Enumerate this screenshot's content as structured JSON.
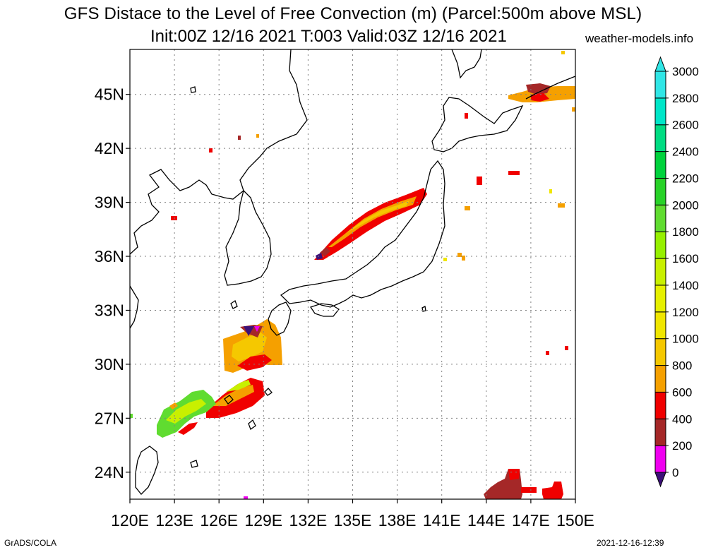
{
  "title": {
    "line1": "GFS Distace to the Level of Free Convection (m) (Parcel:500m above MSL)",
    "line2": "Init:00Z 12/16 2021 T:003 Valid:03Z 12/16 2021",
    "site": "weather-models.info"
  },
  "footer": {
    "left": "GrADS/COLA",
    "right": "2021-12-16-12:39"
  },
  "map": {
    "lon_range": [
      120,
      150
    ],
    "lat_range": [
      22.5,
      47.5
    ],
    "lat_ticks": [
      {
        "value": 24,
        "label": "24N"
      },
      {
        "value": 27,
        "label": "27N"
      },
      {
        "value": 30,
        "label": "30N"
      },
      {
        "value": 33,
        "label": "33N"
      },
      {
        "value": 36,
        "label": "36N"
      },
      {
        "value": 39,
        "label": "39N"
      },
      {
        "value": 42,
        "label": "42N"
      },
      {
        "value": 45,
        "label": "45N"
      }
    ],
    "lon_ticks": [
      {
        "value": 120,
        "label": "120E"
      },
      {
        "value": 123,
        "label": "123E"
      },
      {
        "value": 126,
        "label": "126E"
      },
      {
        "value": 129,
        "label": "129E"
      },
      {
        "value": 132,
        "label": "132E"
      },
      {
        "value": 135,
        "label": "135E"
      },
      {
        "value": 138,
        "label": "138E"
      },
      {
        "value": 141,
        "label": "141E"
      },
      {
        "value": 144,
        "label": "144E"
      },
      {
        "value": 147,
        "label": "147E"
      },
      {
        "value": 150,
        "label": "150E"
      }
    ]
  },
  "colorbar": {
    "levels": [
      0,
      200,
      400,
      600,
      800,
      1000,
      1200,
      1400,
      1600,
      1800,
      2000,
      2200,
      2400,
      2600,
      2800,
      3000
    ],
    "colors": [
      "#3c1078",
      "#f000f0",
      "#a52828",
      "#f00000",
      "#f5a000",
      "#f5c800",
      "#f0e600",
      "#e6f000",
      "#c8f000",
      "#96f000",
      "#60dc30",
      "#28d228",
      "#00d23c",
      "#00dc82",
      "#00e6c8",
      "#30e6e6"
    ],
    "labels": [
      "0",
      "200",
      "400",
      "600",
      "800",
      "1000",
      "1200",
      "1400",
      "1600",
      "1800",
      "2000",
      "2200",
      "2400",
      "2600",
      "2800",
      "3000"
    ]
  }
}
